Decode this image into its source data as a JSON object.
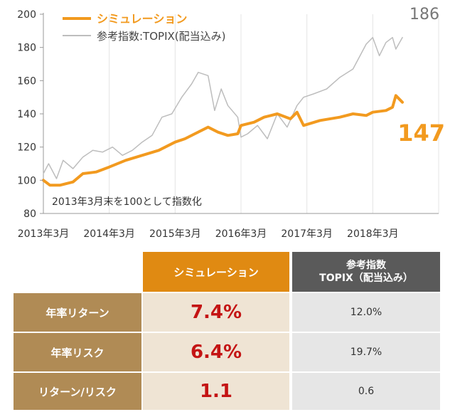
{
  "chart_data": {
    "type": "line",
    "xlabel": "",
    "ylabel": "",
    "ylim": [
      80,
      200
    ],
    "y_ticks": [
      "80",
      "100",
      "120",
      "140",
      "160",
      "180",
      "200"
    ],
    "x_ticks": [
      "2013年3月",
      "2014年3月",
      "2015年3月",
      "2016年3月",
      "2017年3月",
      "2018年3月"
    ],
    "x_tick_values": [
      2013.0,
      2014.0,
      2015.0,
      2016.0,
      2017.0,
      2018.0
    ],
    "xlim": [
      2013.0,
      2019.0
    ],
    "grid": "vertical",
    "legend_position": "top-left",
    "annotation": "2013年3月末を100として指数化",
    "series": [
      {
        "name": "シミュレーション",
        "color": "#f29a1f",
        "end_label": "147",
        "x": [
          2013.0,
          2013.1,
          2013.25,
          2013.45,
          2013.6,
          2013.8,
          2014.0,
          2014.25,
          2014.5,
          2014.75,
          2014.85,
          2015.0,
          2015.15,
          2015.3,
          2015.5,
          2015.65,
          2015.8,
          2015.95,
          2016.0,
          2016.2,
          2016.35,
          2016.55,
          2016.75,
          2016.85,
          2016.95,
          2017.2,
          2017.5,
          2017.7,
          2017.9,
          2018.0,
          2018.2,
          2018.3,
          2018.35,
          2018.45
        ],
        "y": [
          100,
          97,
          97,
          99,
          104,
          105,
          108,
          112,
          115,
          118,
          120,
          123,
          125,
          128,
          132,
          129,
          127,
          128,
          133,
          135,
          138,
          140,
          137,
          141,
          133,
          136,
          138,
          140,
          139,
          141,
          142,
          144,
          151,
          147
        ]
      },
      {
        "name": "参考指数:TOPIX(配当込み)",
        "color": "#bdbdbd",
        "end_label": "186",
        "x": [
          2013.0,
          2013.08,
          2013.2,
          2013.3,
          2013.45,
          2013.6,
          2013.75,
          2013.9,
          2014.05,
          2014.2,
          2014.35,
          2014.5,
          2014.65,
          2014.8,
          2014.95,
          2015.1,
          2015.25,
          2015.35,
          2015.5,
          2015.6,
          2015.7,
          2015.8,
          2015.95,
          2016.0,
          2016.1,
          2016.25,
          2016.4,
          2016.55,
          2016.7,
          2016.85,
          2016.95,
          2017.1,
          2017.3,
          2017.5,
          2017.7,
          2017.9,
          2018.0,
          2018.1,
          2018.2,
          2018.3,
          2018.35,
          2018.45
        ],
        "y": [
          104,
          110,
          101,
          112,
          107,
          114,
          118,
          117,
          120,
          115,
          118,
          123,
          127,
          138,
          140,
          150,
          158,
          165,
          163,
          142,
          155,
          145,
          138,
          126,
          128,
          133,
          125,
          140,
          132,
          145,
          150,
          152,
          155,
          162,
          167,
          182,
          186,
          175,
          183,
          186,
          179,
          186
        ]
      }
    ]
  },
  "table": {
    "col_headers": {
      "sim": "シミュレーション",
      "ref_line1": "参考指数",
      "ref_line2": "TOPIX（配当込み）"
    },
    "rows": [
      {
        "label": "年率リターン",
        "sim": "7.4%",
        "ref": "12.0%"
      },
      {
        "label": "年率リスク",
        "sim": "6.4%",
        "ref": "19.7%"
      },
      {
        "label": "リターン/リスク",
        "sim": "1.1",
        "ref": "0.6"
      }
    ]
  }
}
